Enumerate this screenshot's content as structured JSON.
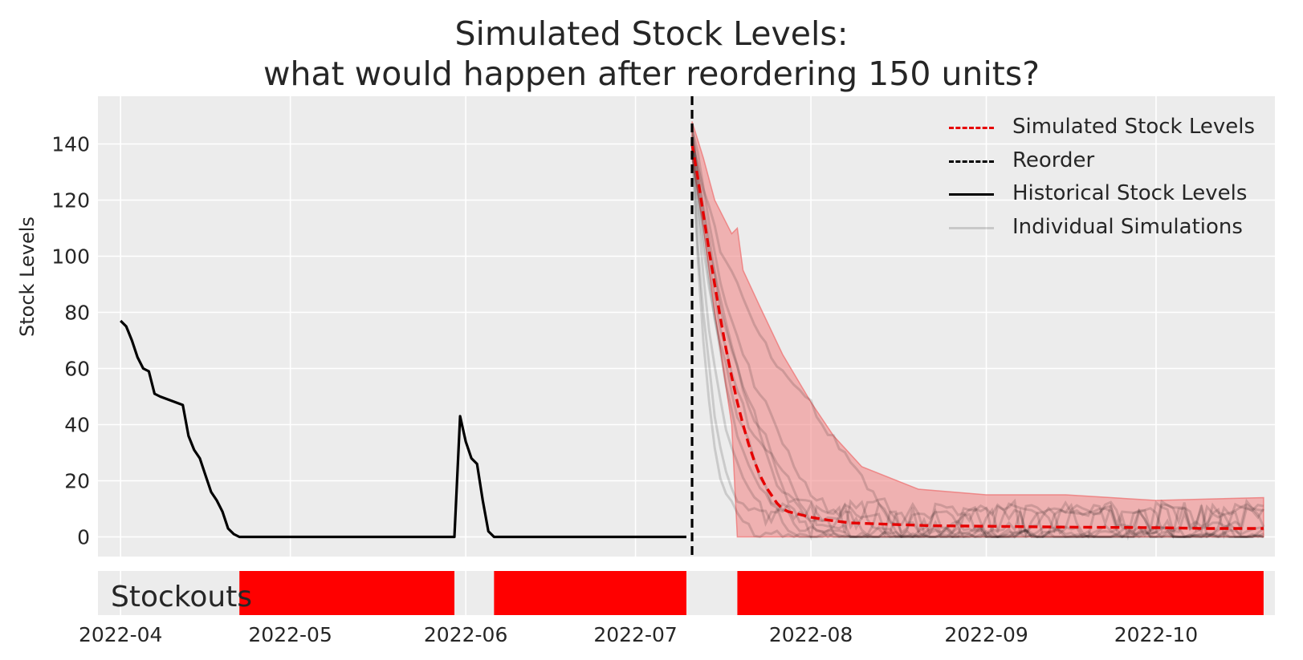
{
  "title_lines": [
    "Simulated Stock Levels:",
    "what would happen after reordering 150 units?"
  ],
  "colors": {
    "background_panel": "#ececec",
    "grid": "#ffffff",
    "simulated": "#e60000",
    "band": "#f28b8b",
    "historical": "#000000",
    "individual": "#000000",
    "stockout": "#ff0000"
  },
  "chart_data": [
    {
      "type": "line",
      "title": "Simulated Stock Levels:\nwhat would happen after reordering 150 units?",
      "xlabel": "",
      "ylabel": "Stock Levels",
      "xlim": [
        "2022-03-28",
        "2022-10-22"
      ],
      "ylim": [
        -7,
        157
      ],
      "yticks": [
        0,
        20,
        40,
        60,
        80,
        100,
        120,
        140
      ],
      "xticks": [
        "2022-04",
        "2022-05",
        "2022-06",
        "2022-07",
        "2022-08",
        "2022-09",
        "2022-10"
      ],
      "grid": true,
      "legend_position": "top-right",
      "legend": [
        {
          "label": "Simulated Stock Levels",
          "style": "dashed-red"
        },
        {
          "label": "Reorder",
          "style": "dashed-black"
        },
        {
          "label": "Historical Stock Levels",
          "style": "solid-black"
        },
        {
          "label": "Individual Simulations",
          "style": "solid-gray"
        }
      ],
      "reorder_date": "2022-07-11",
      "series": [
        {
          "name": "Historical Stock Levels",
          "x": [
            "2022-04-01",
            "2022-04-02",
            "2022-04-03",
            "2022-04-04",
            "2022-04-05",
            "2022-04-06",
            "2022-04-07",
            "2022-04-08",
            "2022-04-12",
            "2022-04-13",
            "2022-04-14",
            "2022-04-15",
            "2022-04-16",
            "2022-04-17",
            "2022-04-18",
            "2022-04-19",
            "2022-04-20",
            "2022-04-21",
            "2022-04-22",
            "2022-05-30",
            "2022-05-31",
            "2022-06-01",
            "2022-06-02",
            "2022-06-03",
            "2022-06-04",
            "2022-06-05",
            "2022-06-06",
            "2022-07-10"
          ],
          "values": [
            77,
            75,
            70,
            64,
            60,
            59,
            51,
            50,
            47,
            36,
            31,
            28,
            22,
            16,
            13,
            9,
            3,
            1,
            0,
            0,
            43,
            34,
            28,
            26,
            13,
            2,
            0,
            0
          ]
        },
        {
          "name": "Simulated Stock Levels",
          "x": [
            "2022-07-11",
            "2022-07-12",
            "2022-07-13",
            "2022-07-14",
            "2022-07-15",
            "2022-07-16",
            "2022-07-17",
            "2022-07-18",
            "2022-07-19",
            "2022-07-20",
            "2022-07-21",
            "2022-07-22",
            "2022-07-23",
            "2022-07-24",
            "2022-07-25",
            "2022-07-26",
            "2022-07-27",
            "2022-07-28",
            "2022-07-30",
            "2022-08-01",
            "2022-08-04",
            "2022-08-08",
            "2022-08-15",
            "2022-08-22",
            "2022-09-01",
            "2022-09-15",
            "2022-10-01",
            "2022-10-10",
            "2022-10-20"
          ],
          "values": [
            140,
            128,
            115,
            102,
            90,
            78,
            67,
            57,
            48,
            40,
            33,
            27,
            22,
            18,
            15,
            12,
            10,
            9,
            8,
            7,
            6,
            5,
            4.5,
            4,
            3.8,
            3.5,
            3.3,
            3,
            3
          ]
        }
      ],
      "band": {
        "x": [
          "2022-07-11",
          "2022-07-13",
          "2022-07-15",
          "2022-07-18",
          "2022-07-19",
          "2022-07-20",
          "2022-07-23",
          "2022-07-27",
          "2022-08-01",
          "2022-08-05",
          "2022-08-10",
          "2022-08-20",
          "2022-09-01",
          "2022-09-15",
          "2022-10-01",
          "2022-10-20"
        ],
        "upper": [
          148,
          135,
          120,
          108,
          110,
          95,
          82,
          65,
          48,
          36,
          25,
          17,
          15,
          15,
          13,
          14
        ],
        "lower": [
          135,
          110,
          80,
          40,
          0,
          0,
          0,
          0,
          0,
          0,
          0,
          0,
          0,
          0,
          0,
          0
        ]
      }
    },
    {
      "type": "bar",
      "title": "",
      "label": "Stockouts",
      "periods": [
        {
          "start": "2022-04-22",
          "end": "2022-05-30"
        },
        {
          "start": "2022-06-06",
          "end": "2022-07-10"
        },
        {
          "start": "2022-07-19",
          "end": "2022-10-20"
        }
      ]
    }
  ]
}
